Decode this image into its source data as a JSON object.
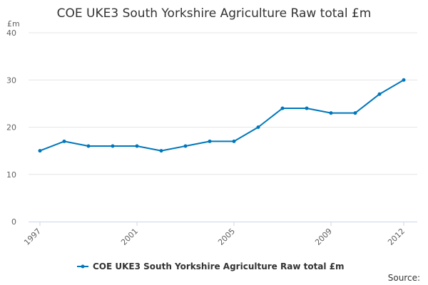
{
  "chart_data": {
    "type": "line",
    "title": "COE UKE3 South Yorkshire Agriculture Raw total £m",
    "y_unit": "£m",
    "x": [
      1997,
      1998,
      1999,
      2000,
      2001,
      2002,
      2003,
      2004,
      2005,
      2006,
      2007,
      2008,
      2009,
      2010,
      2011,
      2012
    ],
    "x_tick_labels": [
      "1997",
      "2001",
      "2005",
      "2009",
      "2012"
    ],
    "y_ticks": [
      0,
      10,
      20,
      30,
      40
    ],
    "ylim": [
      0,
      40
    ],
    "xlim": [
      1997,
      2012
    ],
    "grid": true,
    "legend_position": "bottom-center",
    "series": [
      {
        "name": "COE UKE3 South Yorkshire Agriculture Raw total £m",
        "color": "#0077bb",
        "values": [
          15,
          17,
          16,
          16,
          16,
          15,
          16,
          17,
          17,
          20,
          24,
          24,
          23,
          23,
          27,
          30
        ]
      }
    ],
    "source_label": "Source:"
  }
}
